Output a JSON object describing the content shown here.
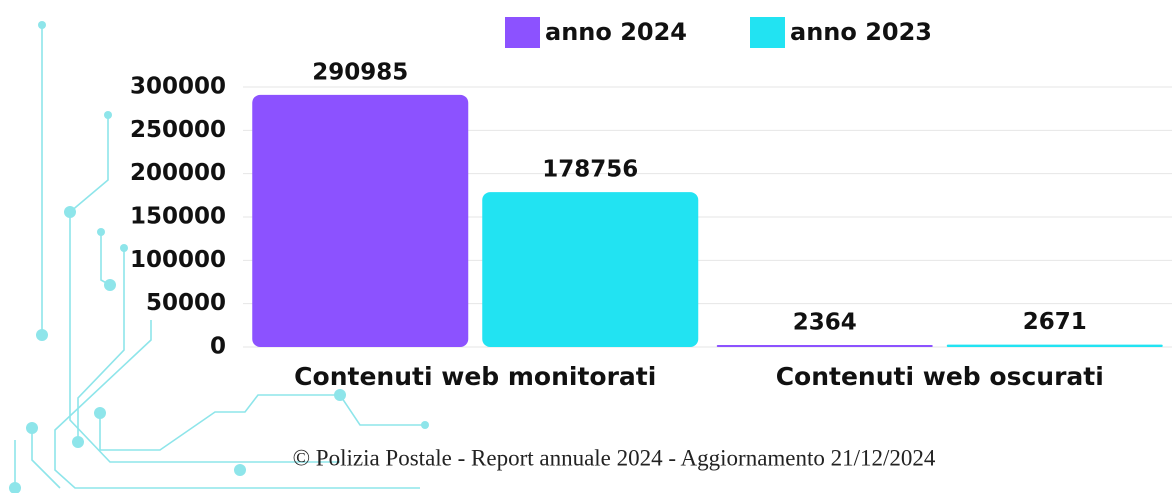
{
  "chart_data": {
    "type": "bar",
    "categories": [
      "Contenuti web monitorati",
      "Contenuti web oscurati"
    ],
    "series": [
      {
        "name": "anno 2024",
        "color": "#8c52ff",
        "values": [
          290985,
          2364
        ]
      },
      {
        "name": "anno 2023",
        "color": "#22e3f2",
        "values": [
          178756,
          2671
        ]
      }
    ],
    "ylim": [
      0,
      300000
    ],
    "yticks": [
      0,
      50000,
      100000,
      150000,
      200000,
      250000,
      300000
    ],
    "grid": true,
    "legend": "top",
    "source": "© Polizia Postale - Report annuale 2024 - Aggiornamento 21/12/2024"
  }
}
